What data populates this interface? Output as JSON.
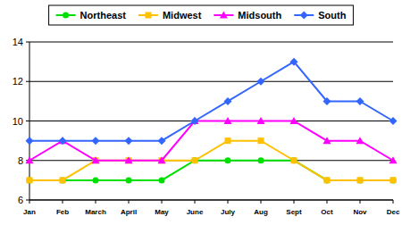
{
  "chart_data": {
    "type": "line",
    "categories": [
      "Jan",
      "Feb",
      "March",
      "April",
      "May",
      "June",
      "July",
      "Aug",
      "Sept",
      "Oct",
      "Nov",
      "Dec"
    ],
    "series": [
      {
        "name": "Northeast",
        "color": "#00e000",
        "marker": "circle",
        "values": [
          7,
          7,
          7,
          7,
          7,
          8,
          8,
          8,
          8,
          7,
          7,
          7
        ]
      },
      {
        "name": "Midwest",
        "color": "#ffc000",
        "marker": "square",
        "values": [
          7,
          7,
          8,
          8,
          8,
          8,
          9,
          9,
          8,
          7,
          7,
          7
        ]
      },
      {
        "name": "Midsouth",
        "color": "#ff00ff",
        "marker": "triangle",
        "values": [
          8,
          9,
          8,
          8,
          8,
          10,
          10,
          10,
          10,
          9,
          9,
          8
        ]
      },
      {
        "name": "South",
        "color": "#3366ff",
        "marker": "diamond",
        "values": [
          9,
          9,
          9,
          9,
          9,
          10,
          11,
          12,
          13,
          11,
          11,
          10
        ]
      }
    ],
    "ylim": [
      6,
      14
    ],
    "yticks": [
      6,
      8,
      10,
      12,
      14
    ],
    "grid": true,
    "legend": "top"
  }
}
